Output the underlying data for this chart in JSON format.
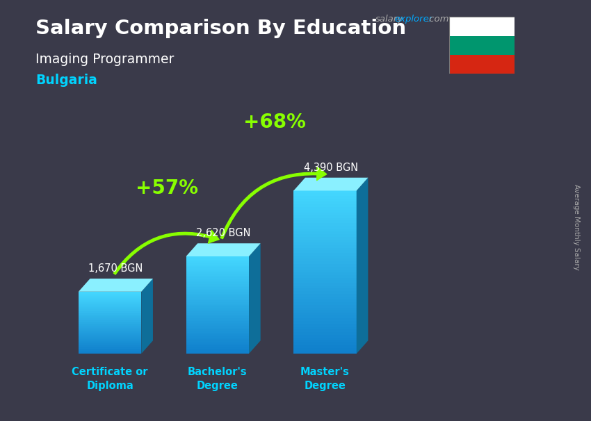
{
  "title": "Salary Comparison By Education",
  "subtitle": "Imaging Programmer",
  "country": "Bulgaria",
  "categories": [
    "Certificate or\nDiploma",
    "Bachelor's\nDegree",
    "Master's\nDegree"
  ],
  "values": [
    1670,
    2620,
    4390
  ],
  "value_labels": [
    "1,670 BGN",
    "2,620 BGN",
    "4,390 BGN"
  ],
  "pct_labels": [
    "+57%",
    "+68%"
  ],
  "bar_front_color": "#29c5f6",
  "bar_top_color": "#7de8ff",
  "bar_side_color": "#1a8ab0",
  "bg_color": "#3a3a4a",
  "title_color": "#ffffff",
  "subtitle_color": "#ffffff",
  "country_color": "#00d4ff",
  "category_color": "#00d4ff",
  "value_label_color": "#ffffff",
  "pct_color": "#88ff00",
  "arrow_color": "#88ff00",
  "ylabel": "Average Monthly Salary",
  "flag_white": "#ffffff",
  "flag_green": "#00966E",
  "flag_red": "#D62612",
  "website_salary_color": "#aaaaaa",
  "website_explorer_color": "#00aaff",
  "website_dotcom_color": "#aaaaaa",
  "figsize": [
    8.5,
    6.06
  ],
  "dpi": 100
}
